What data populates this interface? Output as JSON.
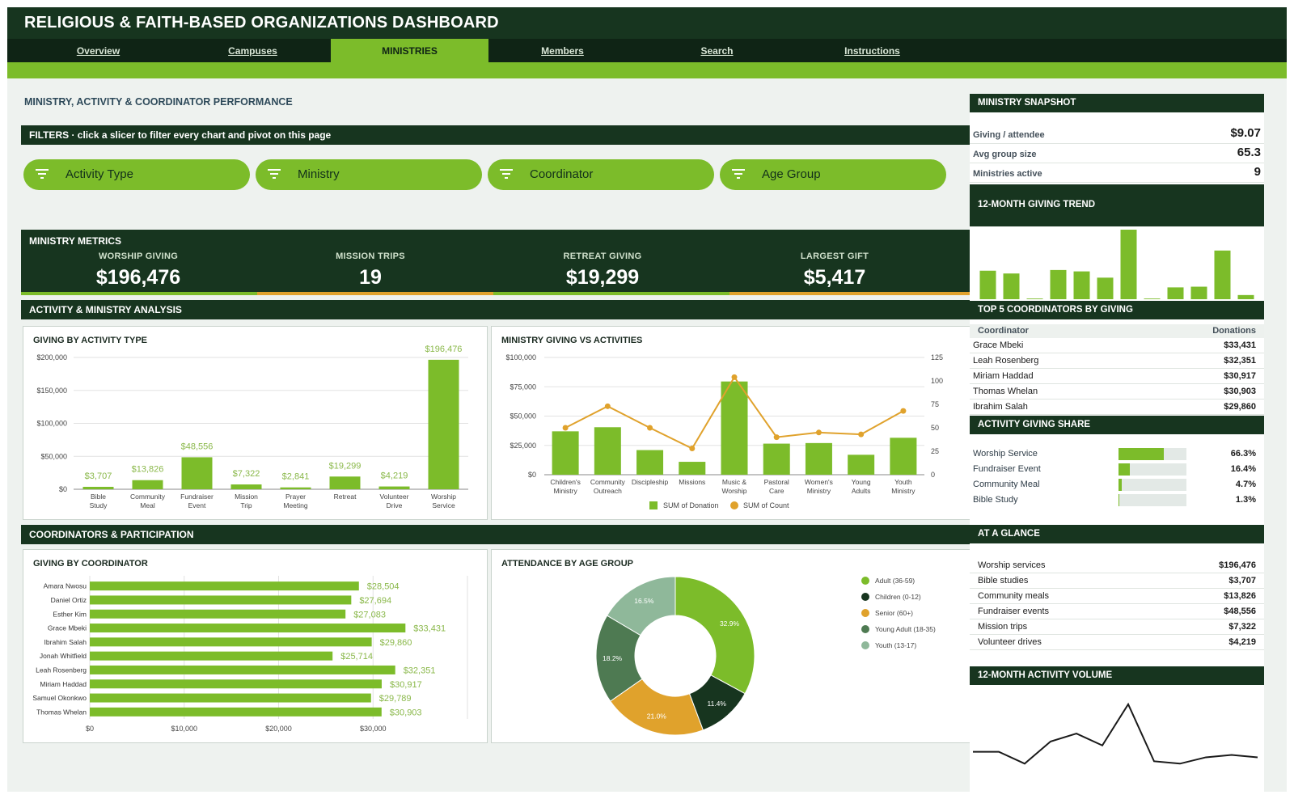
{
  "header": {
    "title": "RELIGIOUS & FAITH-BASED ORGANIZATIONS DASHBOARD"
  },
  "nav": {
    "tabs": [
      {
        "label": "Overview",
        "active": false
      },
      {
        "label": "Campuses",
        "active": false
      },
      {
        "label": "MINISTRIES",
        "active": true
      },
      {
        "label": "Members",
        "active": false
      },
      {
        "label": "Search",
        "active": false
      },
      {
        "label": "Instructions",
        "active": false
      }
    ]
  },
  "page": {
    "title": "MINISTRY, ACTIVITY & COORDINATOR PERFORMANCE"
  },
  "filters": {
    "heading": "FILTERS",
    "hint": "click a slicer to filter every chart and pivot on this page",
    "slicers": [
      "Activity Type",
      "Ministry",
      "Coordinator",
      "Age Group"
    ]
  },
  "metrics": {
    "heading": "MINISTRY METRICS",
    "items": [
      {
        "label": "WORSHIP GIVING",
        "value": "$196,476",
        "bar_color": "#7cbc2a"
      },
      {
        "label": "MISSION TRIPS",
        "value": "19",
        "bar_color": "#e0a22c"
      },
      {
        "label": "RETREAT GIVING",
        "value": "$19,299",
        "bar_color": "#7cbc2a"
      },
      {
        "label": "LARGEST GIFT",
        "value": "$5,417",
        "bar_color": "#e0a22c"
      }
    ]
  },
  "sections": {
    "analysis": "ACTIVITY & MINISTRY ANALYSIS",
    "coordinators": "COORDINATORS & PARTICIPATION"
  },
  "colors": {
    "green": "#7cbc2a",
    "dark": "#17351f",
    "orange": "#e0a22c",
    "mid_green": "#4e7a52",
    "light_green": "#8fb89a"
  },
  "chart_data": [
    {
      "id": "giving_by_activity",
      "type": "bar",
      "title": "GIVING BY ACTIVITY TYPE",
      "categories": [
        "Bible Study",
        "Community Meal",
        "Fundraiser Event",
        "Mission Trip",
        "Prayer Meeting",
        "Retreat",
        "Volunteer Drive",
        "Worship Service"
      ],
      "values": [
        3707,
        13826,
        48556,
        7322,
        2841,
        19299,
        4219,
        196476
      ],
      "data_labels": [
        "$3,707",
        "$13,826",
        "$48,556",
        "$7,322",
        "$2,841",
        "$19,299",
        "$4,219",
        "$196,476"
      ],
      "yticks": [
        "$0",
        "$50,000",
        "$100,000",
        "$150,000",
        "$200,000"
      ],
      "ylim": [
        0,
        200000
      ]
    },
    {
      "id": "ministry_giving_vs_activities",
      "type": "bar",
      "title": "MINISTRY GIVING VS ACTIVITIES",
      "categories": [
        "Children's Ministry",
        "Community Outreach",
        "Discipleship",
        "Missions",
        "Music & Worship",
        "Pastoral Care",
        "Women's Ministry",
        "Young Adults",
        "Youth Ministry"
      ],
      "series": [
        {
          "name": "SUM of Donation",
          "type": "bar",
          "values": [
            37000,
            40500,
            21000,
            11000,
            79500,
            26500,
            27000,
            17000,
            31500
          ]
        },
        {
          "name": "SUM of Count",
          "type": "line",
          "values": [
            50,
            73,
            50,
            28,
            104,
            40,
            45,
            43,
            68
          ]
        }
      ],
      "yticks_left": [
        "$0",
        "$25,000",
        "$50,000",
        "$75,000",
        "$100,000"
      ],
      "yticks_right": [
        "0",
        "25",
        "50",
        "75",
        "100",
        "125"
      ],
      "ylim_left": [
        0,
        100000
      ],
      "ylim_right": [
        0,
        125
      ],
      "legend_position": "bottom"
    },
    {
      "id": "giving_by_coordinator",
      "type": "bar",
      "orientation": "horizontal",
      "title": "GIVING BY COORDINATOR",
      "categories": [
        "Amara Nwosu",
        "Daniel Ortiz",
        "Esther Kim",
        "Grace Mbeki",
        "Ibrahim Salah",
        "Jonah Whitfield",
        "Leah Rosenberg",
        "Miriam Haddad",
        "Samuel Okonkwo",
        "Thomas Whelan"
      ],
      "values": [
        28504,
        27694,
        27083,
        33431,
        29860,
        25714,
        32351,
        30917,
        29789,
        30903
      ],
      "data_labels": [
        "$28,504",
        "$27,694",
        "$27,083",
        "$33,431",
        "$29,860",
        "$25,714",
        "$32,351",
        "$30,917",
        "$29,789",
        "$30,903"
      ],
      "xticks": [
        "$0",
        "$10,000",
        "$20,000",
        "$30,000"
      ],
      "xlim": [
        0,
        40000
      ]
    },
    {
      "id": "attendance_by_age",
      "type": "pie",
      "title": "ATTENDANCE BY AGE GROUP",
      "categories": [
        "Adult (36-59)",
        "Children (0-12)",
        "Senior (60+)",
        "Young Adult (18-35)",
        "Youth (13-17)"
      ],
      "values": [
        32.9,
        11.4,
        21.0,
        18.2,
        16.5
      ],
      "data_labels": [
        "32.9%",
        "11.4%",
        "21.0%",
        "18.2%",
        "16.5%"
      ],
      "colors": [
        "#7cbc2a",
        "#17351f",
        "#e0a22c",
        "#4e7a52",
        "#8fb89a"
      ],
      "legend_position": "right"
    },
    {
      "id": "giving_trend",
      "type": "bar",
      "title": "12-MONTH GIVING TREND",
      "values": [
        41,
        37,
        1,
        42,
        40,
        31,
        100,
        1,
        17,
        18,
        70,
        6
      ]
    },
    {
      "id": "activity_volume",
      "type": "line",
      "title": "12-MONTH ACTIVITY VOLUME",
      "values": [
        30,
        30,
        15,
        43,
        53,
        38,
        90,
        18,
        15,
        23,
        26,
        23
      ]
    }
  ],
  "snapshot": {
    "heading": "MINISTRY SNAPSHOT",
    "kpis": [
      {
        "label": "Giving / attendee",
        "value": "$9.07"
      },
      {
        "label": "Avg group size",
        "value": "65.3"
      },
      {
        "label": "Ministries active",
        "value": "9"
      }
    ]
  },
  "top5": {
    "heading": "TOP 5 COORDINATORS BY GIVING",
    "col_name": "Coordinator",
    "col_value": "Donations",
    "rows": [
      {
        "name": "Grace Mbeki",
        "value": "$33,431"
      },
      {
        "name": "Leah Rosenberg",
        "value": "$32,351"
      },
      {
        "name": "Miriam Haddad",
        "value": "$30,917"
      },
      {
        "name": "Thomas Whelan",
        "value": "$30,903"
      },
      {
        "name": "Ibrahim Salah",
        "value": "$29,860"
      }
    ]
  },
  "share": {
    "heading": "ACTIVITY GIVING SHARE",
    "rows": [
      {
        "name": "Worship Service",
        "value": "66.3%",
        "fraction": 0.663
      },
      {
        "name": "Fundraiser Event",
        "value": "16.4%",
        "fraction": 0.164
      },
      {
        "name": "Community Meal",
        "value": "4.7%",
        "fraction": 0.047
      },
      {
        "name": "Bible Study",
        "value": "1.3%",
        "fraction": 0.013
      }
    ]
  },
  "glance": {
    "heading": "AT A GLANCE",
    "rows": [
      {
        "name": "Worship services",
        "value": "$196,476"
      },
      {
        "name": "Bible studies",
        "value": "$3,707"
      },
      {
        "name": "Community meals",
        "value": "$13,826"
      },
      {
        "name": "Fundraiser events",
        "value": "$48,556"
      },
      {
        "name": "Mission trips",
        "value": "$7,322"
      },
      {
        "name": "Volunteer drives",
        "value": "$4,219"
      }
    ]
  }
}
